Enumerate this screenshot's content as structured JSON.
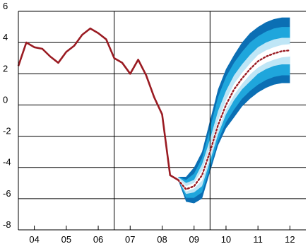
{
  "chart_data": {
    "type": "line",
    "title": "",
    "xlabel": "",
    "ylabel": "",
    "ylim": [
      -8,
      6
    ],
    "xlim": [
      2003.5,
      2012.5
    ],
    "yticks": [
      "6",
      "4",
      "2",
      "0",
      "-2",
      "-4",
      "-6",
      "-8"
    ],
    "xticks": [
      "04",
      "05",
      "06",
      "07",
      "08",
      "09",
      "10",
      "11",
      "12"
    ],
    "grid": "horizontal",
    "legend": "none",
    "colors": {
      "history": "#9a1b22",
      "forecast": "#9a1b22",
      "band_outer": "#0b6fb4",
      "band_mid": "#1fa6dc",
      "band_inner": "#bfe6f6",
      "axis": "#000000"
    },
    "series": [
      {
        "x": [
          2003.5,
          2003.75,
          2004.0,
          2004.25,
          2004.5,
          2004.75,
          2005.0,
          2005.25,
          2005.5,
          2005.75,
          2006.0,
          2006.25,
          2006.5,
          2006.75,
          2007.0,
          2007.25,
          2007.5,
          2007.75,
          2008.0,
          2008.25,
          2008.5
        ],
        "y": [
          2.5,
          4.0,
          3.7,
          3.6,
          3.1,
          2.7,
          3.4,
          3.8,
          4.5,
          4.9,
          4.6,
          4.2,
          3.0,
          2.7,
          2.0,
          2.9,
          1.9,
          0.5,
          -0.6,
          -4.5,
          -4.8
        ]
      },
      {
        "x": [
          2008.5,
          2008.75,
          2009.0,
          2009.25,
          2009.5,
          2009.75,
          2010.0,
          2010.25,
          2010.5,
          2010.75,
          2011.0,
          2011.25,
          2011.5,
          2011.75,
          2012.0
        ],
        "y": [
          -4.8,
          -5.4,
          -5.2,
          -4.5,
          -3.0,
          -1.3,
          0.0,
          1.0,
          1.7,
          2.3,
          2.8,
          3.1,
          3.3,
          3.45,
          3.5
        ]
      }
    ],
    "bands": [
      {
        "x": [
          2008.5,
          2008.75,
          2009.0,
          2009.25,
          2009.5,
          2009.75,
          2010.0,
          2010.25,
          2010.5,
          2010.75,
          2011.0,
          2011.25,
          2011.5,
          2011.75,
          2012.0
        ],
        "lower": [
          -4.8,
          -6.2,
          -6.3,
          -6.0,
          -4.3,
          -2.6,
          -1.5,
          -0.8,
          -0.1,
          0.4,
          0.8,
          1.1,
          1.3,
          1.4,
          1.4
        ],
        "upper": [
          -4.6,
          -4.6,
          -4.0,
          -3.0,
          -1.0,
          1.0,
          2.3,
          3.2,
          4.0,
          4.6,
          5.0,
          5.3,
          5.5,
          5.6,
          5.6
        ]
      },
      {
        "x": [
          2008.5,
          2008.75,
          2009.0,
          2009.25,
          2009.5,
          2009.75,
          2010.0,
          2010.25,
          2010.5,
          2010.75,
          2011.0,
          2011.25,
          2011.5,
          2011.75,
          2012.0
        ],
        "lower": [
          -4.8,
          -5.95,
          -5.95,
          -5.6,
          -4.0,
          -2.3,
          -1.1,
          -0.3,
          0.4,
          0.9,
          1.3,
          1.6,
          1.8,
          1.9,
          1.9
        ],
        "upper": [
          -4.6,
          -4.8,
          -4.4,
          -3.4,
          -1.5,
          0.5,
          1.8,
          2.7,
          3.4,
          4.0,
          4.4,
          4.7,
          4.9,
          5.0,
          5.0
        ]
      },
      {
        "x": [
          2008.5,
          2008.75,
          2009.0,
          2009.25,
          2009.5,
          2009.75,
          2010.0,
          2010.25,
          2010.5,
          2010.75,
          2011.0,
          2011.25,
          2011.5,
          2011.75,
          2012.0
        ],
        "lower": [
          -4.8,
          -5.7,
          -5.6,
          -5.2,
          -3.6,
          -1.9,
          -0.6,
          0.3,
          1.0,
          1.5,
          2.0,
          2.3,
          2.5,
          2.6,
          2.6
        ],
        "upper": [
          -4.6,
          -5.0,
          -4.8,
          -3.8,
          -2.2,
          -0.4,
          0.9,
          1.9,
          2.6,
          3.2,
          3.7,
          4.0,
          4.2,
          4.3,
          4.3
        ]
      },
      {
        "x": [
          2008.5,
          2008.75,
          2009.0,
          2009.25,
          2009.5,
          2009.75,
          2010.0,
          2010.25,
          2010.5,
          2010.75,
          2011.0,
          2011.25,
          2011.5,
          2011.75,
          2012.0
        ],
        "lower": [
          -4.8,
          -5.55,
          -5.35,
          -4.85,
          -3.3,
          -1.6,
          -0.3,
          0.65,
          1.35,
          1.95,
          2.4,
          2.7,
          2.9,
          3.05,
          3.1
        ],
        "upper": [
          -4.7,
          -5.2,
          -5.0,
          -4.2,
          -2.7,
          -1.0,
          0.3,
          1.35,
          2.05,
          2.65,
          3.2,
          3.5,
          3.7,
          3.85,
          3.9
        ]
      }
    ],
    "vlines": [
      2006.5,
      2009.5
    ]
  }
}
